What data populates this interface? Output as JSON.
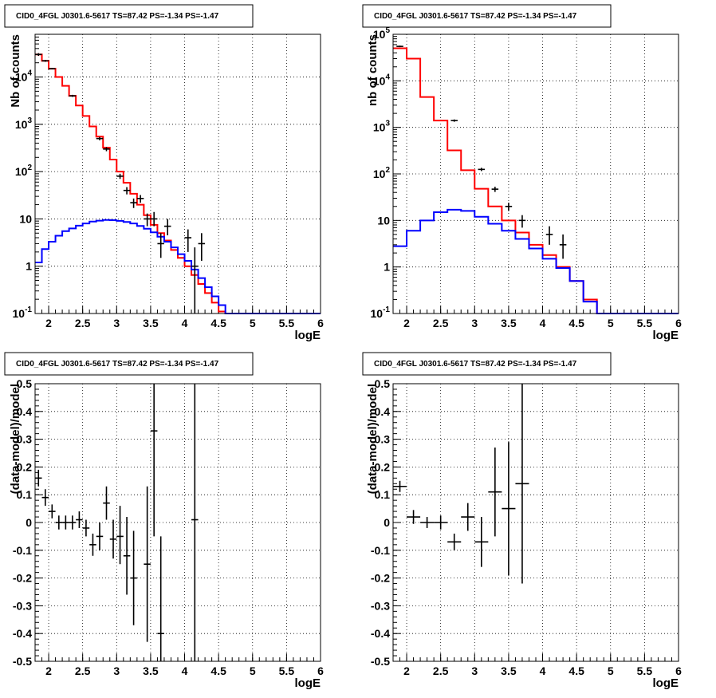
{
  "chart_data": [
    {
      "id": "pad1",
      "type": "line",
      "title": "CID0_4FGL J0301.6-5617 TS=87.42 PS=-1.34 PS=-1.47",
      "xlabel": "logE",
      "ylabel": "Nb of counts",
      "xlim": [
        1.8,
        6.0
      ],
      "ylim": [
        0.1,
        80000
      ],
      "yscale": "log",
      "grid": true,
      "xticks": [
        "2",
        "2.5",
        "3",
        "3.5",
        "4",
        "4.5",
        "5",
        "5.5",
        "6"
      ],
      "yticks": [
        "10^-1",
        "1",
        "10",
        "10^2",
        "10^3",
        "10^4"
      ],
      "bin_edges": [
        1.8,
        1.9,
        2.0,
        2.1,
        2.2,
        2.3,
        2.4,
        2.5,
        2.6,
        2.7,
        2.8,
        2.9,
        3.0,
        3.1,
        3.2,
        3.3,
        3.4,
        3.5,
        3.6,
        3.7,
        3.8,
        3.9,
        4.0,
        4.1,
        4.2,
        4.3,
        4.4,
        4.5,
        4.6,
        4.7,
        4.8,
        4.9,
        5.0,
        5.1,
        5.2,
        5.3,
        5.4,
        5.5,
        5.6,
        5.7,
        5.8,
        5.9,
        6.0
      ],
      "series": [
        {
          "color": "#ff0000",
          "values": [
            30000,
            22000,
            15000,
            10000,
            6500,
            4000,
            2500,
            1500,
            900,
            550,
            320,
            180,
            100,
            58,
            34,
            20,
            12,
            7.5,
            5,
            3.5,
            2.2,
            1.5,
            1.0,
            0.65,
            0.42,
            0.27,
            0.17,
            0.11,
            0.1,
            0.1,
            0.1,
            0.1,
            0.1,
            0.1,
            0.1,
            0.1,
            0.1,
            0.1,
            0.1,
            0.1,
            0.1,
            0.1
          ]
        },
        {
          "color": "#0000ff",
          "values": [
            1.2,
            2.3,
            3.3,
            4.4,
            5.5,
            6.3,
            7.2,
            8.0,
            8.8,
            9.2,
            9.5,
            9.4,
            9.1,
            8.6,
            8.0,
            7.1,
            6.2,
            5.2,
            4.2,
            3.3,
            2.5,
            1.8,
            1.3,
            0.85,
            0.56,
            0.36,
            0.23,
            0.15,
            0.1,
            0.1,
            0.1,
            0.1,
            0.1,
            0.1,
            0.1,
            0.1,
            0.1,
            0.1,
            0.1,
            0.1,
            0.1,
            0.1
          ]
        },
        {
          "type": "errorbar",
          "color": "#000000",
          "points": [
            {
              "x": 1.85,
              "y": 30000,
              "lo": 28000,
              "hi": 32000
            },
            {
              "x": 1.95,
              "y": 22000,
              "lo": 21000,
              "hi": 23000
            },
            {
              "x": 2.05,
              "y": 15000,
              "lo": 14500,
              "hi": 15500
            },
            {
              "x": 2.35,
              "y": 4000,
              "lo": 3800,
              "hi": 4200
            },
            {
              "x": 2.75,
              "y": 500,
              "lo": 460,
              "hi": 540
            },
            {
              "x": 2.85,
              "y": 300,
              "lo": 270,
              "hi": 330
            },
            {
              "x": 3.05,
              "y": 80,
              "lo": 70,
              "hi": 90
            },
            {
              "x": 3.15,
              "y": 40,
              "lo": 33,
              "hi": 47
            },
            {
              "x": 3.25,
              "y": 22,
              "lo": 17,
              "hi": 27
            },
            {
              "x": 3.35,
              "y": 27,
              "lo": 22,
              "hi": 32
            },
            {
              "x": 3.45,
              "y": 10,
              "lo": 7,
              "hi": 13
            },
            {
              "x": 3.55,
              "y": 10,
              "lo": 7,
              "hi": 14
            },
            {
              "x": 3.65,
              "y": 3,
              "lo": 1.5,
              "hi": 5
            },
            {
              "x": 3.75,
              "y": 7,
              "lo": 4.5,
              "hi": 10
            },
            {
              "x": 4.05,
              "y": 4,
              "lo": 2,
              "hi": 6
            },
            {
              "x": 4.15,
              "y": 1,
              "lo": 0.1,
              "hi": 2.5
            },
            {
              "x": 4.25,
              "y": 3,
              "lo": 1.3,
              "hi": 5
            }
          ]
        }
      ]
    },
    {
      "id": "pad2",
      "type": "line",
      "title": "CID0_4FGL J0301.6-5617 TS=87.42 PS=-1.34 PS=-1.47",
      "xlabel": "logE",
      "ylabel": "nb of counts",
      "xlim": [
        1.8,
        6.0
      ],
      "ylim": [
        0.1,
        100000
      ],
      "yscale": "log",
      "grid": true,
      "xticks": [
        "2",
        "2.5",
        "3",
        "3.5",
        "4",
        "4.5",
        "5",
        "5.5",
        "6"
      ],
      "yticks": [
        "10^-1",
        "1",
        "10",
        "10^2",
        "10^3",
        "10^4",
        "10^5"
      ],
      "bin_edges": [
        1.8,
        2.0,
        2.2,
        2.4,
        2.6,
        2.8,
        3.0,
        3.2,
        3.4,
        3.6,
        3.8,
        4.0,
        4.2,
        4.4,
        4.6,
        4.8,
        5.0,
        5.2,
        5.4,
        5.6,
        5.8,
        6.0
      ],
      "series": [
        {
          "color": "#ff0000",
          "values": [
            50000,
            30000,
            4500,
            1400,
            320,
            120,
            48,
            20,
            10,
            5.5,
            3.0,
            1.8,
            1.0,
            0.5,
            0.2,
            0.1,
            0.1,
            0.1,
            0.1,
            0.1,
            0.1
          ]
        },
        {
          "color": "#0000ff",
          "values": [
            2.8,
            6.0,
            10,
            15,
            17,
            16,
            12,
            8.5,
            6,
            4,
            2.5,
            1.5,
            0.95,
            0.5,
            0.18,
            0.1,
            0.1,
            0.1,
            0.1,
            0.1,
            0.1
          ]
        },
        {
          "type": "errorbar",
          "color": "#000000",
          "points": [
            {
              "x": 1.9,
              "y": 55000,
              "lo": 53000,
              "hi": 57000
            },
            {
              "x": 2.7,
              "y": 1400,
              "lo": 1320,
              "hi": 1480
            },
            {
              "x": 3.1,
              "y": 125,
              "lo": 115,
              "hi": 135
            },
            {
              "x": 3.3,
              "y": 47,
              "lo": 41,
              "hi": 53
            },
            {
              "x": 3.5,
              "y": 20,
              "lo": 16,
              "hi": 24
            },
            {
              "x": 3.7,
              "y": 10,
              "lo": 7,
              "hi": 13
            },
            {
              "x": 4.1,
              "y": 5,
              "lo": 3,
              "hi": 7.5
            },
            {
              "x": 4.3,
              "y": 3,
              "lo": 1.5,
              "hi": 5
            }
          ]
        }
      ]
    },
    {
      "id": "pad3",
      "type": "scatter",
      "title": "CID0_4FGL J0301.6-5617 TS=87.42 PS=-1.34 PS=-1.47",
      "xlabel": "logE",
      "ylabel": "(data-model)/model",
      "xlim": [
        1.8,
        6.0
      ],
      "ylim": [
        -0.5,
        0.5
      ],
      "yscale": "linear",
      "grid": true,
      "xticks": [
        "2",
        "2.5",
        "3",
        "3.5",
        "4",
        "4.5",
        "5",
        "5.5",
        "6"
      ],
      "yticks": [
        "-0.5",
        "-0.4",
        "-0.3",
        "-0.2",
        "-0.1",
        "0",
        "0.1",
        "0.2",
        "0.3",
        "0.4",
        "0.5"
      ],
      "series": [
        {
          "type": "errorbar",
          "color": "#000000",
          "points": [
            {
              "x": 1.85,
              "y": 0.16,
              "lo": 0.13,
              "hi": 0.19,
              "dx": 0.05
            },
            {
              "x": 1.95,
              "y": 0.09,
              "lo": 0.06,
              "hi": 0.12,
              "dx": 0.05
            },
            {
              "x": 2.05,
              "y": 0.04,
              "lo": 0.015,
              "hi": 0.065,
              "dx": 0.05
            },
            {
              "x": 2.15,
              "y": 0.0,
              "lo": -0.025,
              "hi": 0.025,
              "dx": 0.05
            },
            {
              "x": 2.25,
              "y": 0.0,
              "lo": -0.025,
              "hi": 0.025,
              "dx": 0.05
            },
            {
              "x": 2.35,
              "y": 0.0,
              "lo": -0.025,
              "hi": 0.025,
              "dx": 0.05
            },
            {
              "x": 2.45,
              "y": 0.01,
              "lo": -0.02,
              "hi": 0.04,
              "dx": 0.05
            },
            {
              "x": 2.55,
              "y": -0.02,
              "lo": -0.05,
              "hi": 0.01,
              "dx": 0.05
            },
            {
              "x": 2.65,
              "y": -0.08,
              "lo": -0.12,
              "hi": -0.04,
              "dx": 0.05
            },
            {
              "x": 2.75,
              "y": -0.05,
              "lo": -0.1,
              "hi": -0.0,
              "dx": 0.05
            },
            {
              "x": 2.85,
              "y": 0.07,
              "lo": 0.01,
              "hi": 0.13,
              "dx": 0.05
            },
            {
              "x": 2.95,
              "y": -0.06,
              "lo": -0.13,
              "hi": 0.01,
              "dx": 0.05
            },
            {
              "x": 3.05,
              "y": -0.05,
              "lo": -0.15,
              "hi": 0.06,
              "dx": 0.05
            },
            {
              "x": 3.15,
              "y": -0.12,
              "lo": -0.26,
              "hi": 0.02,
              "dx": 0.05
            },
            {
              "x": 3.25,
              "y": -0.2,
              "lo": -0.37,
              "hi": -0.03,
              "dx": 0.05
            },
            {
              "x": 3.45,
              "y": -0.15,
              "lo": -0.43,
              "hi": 0.13,
              "dx": 0.05
            },
            {
              "x": 3.55,
              "y": 0.33,
              "lo": -0.05,
              "hi": 0.5,
              "dx": 0.05
            },
            {
              "x": 3.65,
              "y": -0.4,
              "lo": -0.5,
              "hi": -0.05,
              "dx": 0.05
            },
            {
              "x": 4.15,
              "y": 0.01,
              "lo": -0.5,
              "hi": 0.5,
              "dx": 0.05
            }
          ]
        }
      ]
    },
    {
      "id": "pad4",
      "type": "scatter",
      "title": "CID0_4FGL J0301.6-5617 TS=87.42 PS=-1.34 PS=-1.47",
      "xlabel": "logE",
      "ylabel": "(data-model)/model",
      "xlim": [
        1.8,
        6.0
      ],
      "ylim": [
        -0.5,
        0.5
      ],
      "yscale": "linear",
      "grid": true,
      "xticks": [
        "2",
        "2.5",
        "3",
        "3.5",
        "4",
        "4.5",
        "5",
        "5.5",
        "6"
      ],
      "yticks": [
        "-0.5",
        "-0.4",
        "-0.3",
        "-0.2",
        "-0.1",
        "0",
        "0.1",
        "0.2",
        "0.3",
        "0.4",
        "0.5"
      ],
      "series": [
        {
          "type": "errorbar",
          "color": "#000000",
          "points": [
            {
              "x": 1.9,
              "y": 0.13,
              "lo": 0.11,
              "hi": 0.15,
              "dx": 0.1
            },
            {
              "x": 2.1,
              "y": 0.02,
              "lo": -0.005,
              "hi": 0.045,
              "dx": 0.1
            },
            {
              "x": 2.3,
              "y": 0.0,
              "lo": -0.02,
              "hi": 0.02,
              "dx": 0.1
            },
            {
              "x": 2.5,
              "y": 0.0,
              "lo": -0.025,
              "hi": 0.025,
              "dx": 0.1
            },
            {
              "x": 2.7,
              "y": -0.07,
              "lo": -0.1,
              "hi": -0.04,
              "dx": 0.1
            },
            {
              "x": 2.9,
              "y": 0.02,
              "lo": -0.03,
              "hi": 0.07,
              "dx": 0.1
            },
            {
              "x": 3.1,
              "y": -0.07,
              "lo": -0.16,
              "hi": 0.02,
              "dx": 0.1
            },
            {
              "x": 3.3,
              "y": 0.11,
              "lo": -0.05,
              "hi": 0.27,
              "dx": 0.1
            },
            {
              "x": 3.5,
              "y": 0.05,
              "lo": -0.19,
              "hi": 0.29,
              "dx": 0.1
            },
            {
              "x": 3.7,
              "y": 0.14,
              "lo": -0.22,
              "hi": 0.5,
              "dx": 0.1
            }
          ]
        }
      ]
    }
  ]
}
